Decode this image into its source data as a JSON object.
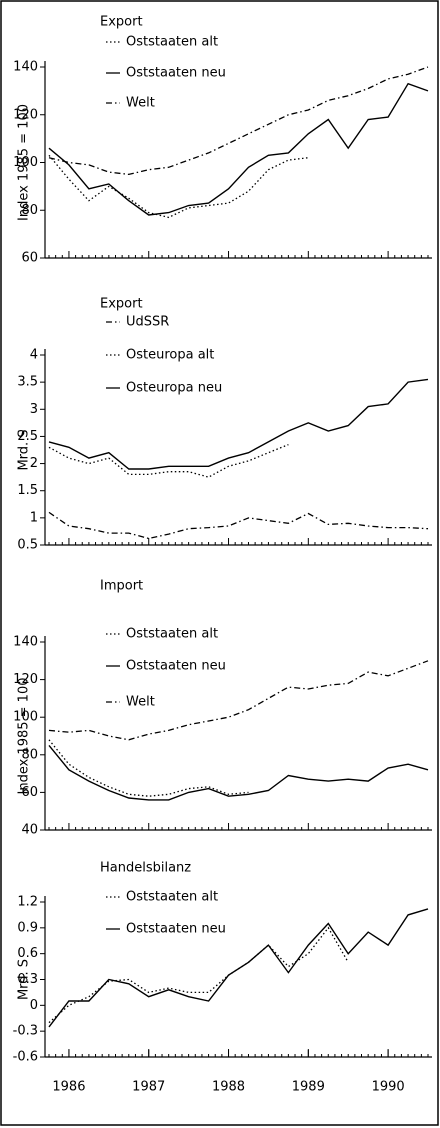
{
  "chart_data": [
    {
      "type": "line",
      "title": "Export",
      "ylabel": "Index 1985 = 100",
      "x": [
        1985.75,
        1986,
        1986.25,
        1986.5,
        1986.75,
        1987,
        1987.25,
        1987.5,
        1987.75,
        1988,
        1988.25,
        1988.5,
        1988.75,
        1989,
        1989.25,
        1989.5,
        1989.75,
        1990,
        1990.25,
        1990.5
      ],
      "xlim": [
        1985.7,
        1990.55
      ],
      "ylim": [
        60,
        140
      ],
      "yticks": [
        60,
        80,
        100,
        120,
        140
      ],
      "series": [
        {
          "name": "Oststaaten alt",
          "color": "#000000",
          "style": "dotted",
          "values": [
            103,
            93,
            84,
            90,
            85,
            79,
            77,
            81,
            82,
            83,
            88,
            97,
            101,
            102,
            null,
            null,
            null,
            null,
            null,
            null
          ]
        },
        {
          "name": "Oststaaten neu",
          "color": "#000000",
          "style": "solid",
          "values": [
            106,
            99,
            89,
            91,
            84,
            78,
            79,
            82,
            83,
            89,
            98,
            103,
            104,
            112,
            118,
            106,
            118,
            119,
            133,
            130
          ]
        },
        {
          "name": "Welt",
          "color": "#000000",
          "style": "dashdot",
          "values": [
            102,
            100,
            99,
            96,
            95,
            97,
            98,
            101,
            104,
            108,
            112,
            116,
            120,
            122,
            126,
            128,
            131,
            135,
            137,
            140
          ]
        }
      ]
    },
    {
      "type": "line",
      "title": "Export",
      "ylabel": "Mrd. S",
      "x": [
        1985.75,
        1986,
        1986.25,
        1986.5,
        1986.75,
        1987,
        1987.25,
        1987.5,
        1987.75,
        1988,
        1988.25,
        1988.5,
        1988.75,
        1989,
        1989.25,
        1989.5,
        1989.75,
        1990,
        1990.25,
        1990.5
      ],
      "xlim": [
        1985.7,
        1990.55
      ],
      "ylim": [
        0.5,
        4
      ],
      "yticks": [
        0.5,
        1,
        1.5,
        2,
        2.5,
        3,
        3.5,
        4
      ],
      "series": [
        {
          "name": "UdSSR",
          "color": "#000000",
          "style": "dashdot",
          "values": [
            1.1,
            0.85,
            0.8,
            0.72,
            0.72,
            0.62,
            0.7,
            0.8,
            0.82,
            0.85,
            1.0,
            0.95,
            0.9,
            1.08,
            0.88,
            0.9,
            0.85,
            0.82,
            0.82,
            0.8
          ]
        },
        {
          "name": "Osteuropa alt",
          "color": "#000000",
          "style": "dotted",
          "values": [
            2.3,
            2.1,
            2.0,
            2.1,
            1.8,
            1.8,
            1.85,
            1.85,
            1.75,
            1.95,
            2.05,
            2.2,
            2.35,
            null,
            null,
            null,
            null,
            null,
            null,
            null
          ]
        },
        {
          "name": "Osteuropa neu",
          "color": "#000000",
          "style": "solid",
          "values": [
            2.4,
            2.3,
            2.1,
            2.2,
            1.9,
            1.9,
            1.95,
            1.95,
            1.95,
            2.1,
            2.2,
            2.4,
            2.6,
            2.75,
            2.6,
            2.7,
            3.05,
            3.1,
            3.5,
            3.55
          ]
        }
      ]
    },
    {
      "type": "line",
      "title": "Import",
      "ylabel": "Index 1985 = 100",
      "x": [
        1985.75,
        1986,
        1986.25,
        1986.5,
        1986.75,
        1987,
        1987.25,
        1987.5,
        1987.75,
        1988,
        1988.25,
        1988.5,
        1988.75,
        1989,
        1989.25,
        1989.5,
        1989.75,
        1990,
        1990.25,
        1990.5
      ],
      "xlim": [
        1985.7,
        1990.55
      ],
      "ylim": [
        40,
        140
      ],
      "yticks": [
        40,
        60,
        80,
        100,
        120,
        140
      ],
      "series": [
        {
          "name": "Oststaaten alt",
          "color": "#000000",
          "style": "dotted",
          "values": [
            88,
            75,
            68,
            63,
            59,
            58,
            59,
            62,
            63,
            59,
            60,
            null,
            null,
            null,
            null,
            null,
            null,
            null,
            null,
            null
          ]
        },
        {
          "name": "Oststaaten neu",
          "color": "#000000",
          "style": "solid",
          "values": [
            85,
            72,
            66,
            61,
            57,
            56,
            56,
            60,
            62,
            58,
            59,
            61,
            69,
            67,
            66,
            67,
            66,
            73,
            75,
            72
          ]
        },
        {
          "name": "Welt",
          "color": "#000000",
          "style": "dashdot",
          "values": [
            93,
            92,
            93,
            90,
            88,
            91,
            93,
            96,
            98,
            100,
            104,
            110,
            116,
            115,
            117,
            118,
            124,
            122,
            126,
            130
          ]
        }
      ]
    },
    {
      "type": "line",
      "title": "Handelsbilanz",
      "ylabel": "Mrd. S",
      "x": [
        1985.75,
        1986,
        1986.25,
        1986.5,
        1986.75,
        1987,
        1987.25,
        1987.5,
        1987.75,
        1988,
        1988.25,
        1988.5,
        1988.75,
        1989,
        1989.25,
        1989.5,
        1989.75,
        1990,
        1990.25,
        1990.5
      ],
      "xlim": [
        1985.7,
        1990.55
      ],
      "ylim": [
        -0.6,
        1.2
      ],
      "yticks": [
        -0.6,
        -0.3,
        0,
        0.3,
        0.6,
        0.9,
        1.2
      ],
      "xticks": [
        1986,
        1987,
        1988,
        1989,
        1990
      ],
      "series": [
        {
          "name": "Oststaaten alt",
          "color": "#000000",
          "style": "dotted",
          "values": [
            -0.2,
            0.0,
            0.1,
            0.28,
            0.3,
            0.15,
            0.2,
            0.15,
            0.15,
            0.35,
            0.5,
            0.7,
            0.45,
            0.6,
            0.9,
            0.5,
            null,
            null,
            null,
            null
          ]
        },
        {
          "name": "Oststaaten neu",
          "color": "#000000",
          "style": "solid",
          "values": [
            -0.25,
            0.05,
            0.05,
            0.3,
            0.25,
            0.1,
            0.18,
            0.1,
            0.05,
            0.35,
            0.5,
            0.7,
            0.38,
            0.7,
            0.95,
            0.6,
            0.85,
            0.7,
            1.05,
            1.12
          ]
        }
      ]
    }
  ]
}
